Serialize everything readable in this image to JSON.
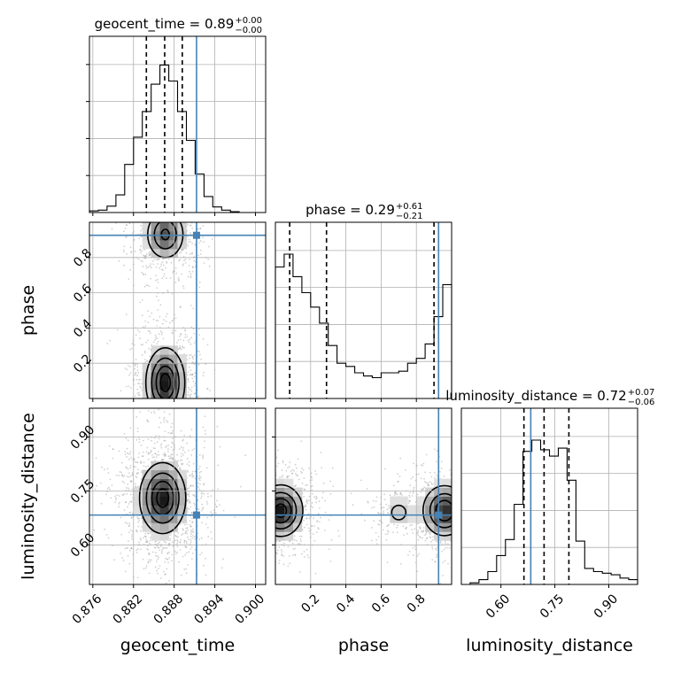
{
  "chart_data": {
    "type": "corner",
    "parameters": [
      "geocent_time",
      "phase",
      "luminosity_distance"
    ],
    "truths": {
      "geocent_time": 0.8913,
      "phase": 0.926,
      "luminosity_distance": 0.683
    },
    "titles": [
      {
        "param": "geocent_time",
        "text": "geocent_time = 0.89",
        "upper": "+0.00",
        "lower": "−0.00"
      },
      {
        "param": "phase",
        "text": "phase = 0.29",
        "upper": "+0.61",
        "lower": "−0.21"
      },
      {
        "param": "luminosity_distance",
        "text": "luminosity_distance = 0.72",
        "upper": "+0.07",
        "lower": "−0.06"
      }
    ],
    "axis_labels": {
      "xlabels": [
        "geocent_time",
        "phase",
        "luminosity_distance"
      ],
      "ylabels": [
        "phase",
        "luminosity_distance"
      ]
    },
    "ranges": {
      "geocent_time": [
        0.8755,
        0.9015
      ],
      "phase": [
        0.0,
        1.0
      ],
      "luminosity_distance": [
        0.49,
        0.98
      ]
    },
    "ticks": {
      "geocent_time": [
        "0.876",
        "0.882",
        "0.888",
        "0.894",
        "0.900"
      ],
      "phase": [
        "0.2",
        "0.4",
        "0.6",
        "0.8"
      ],
      "luminosity_distance": [
        "0.60",
        "0.75",
        "0.90"
      ]
    },
    "histograms": {
      "geocent_time": {
        "bins": [
          0.8755,
          0.8768,
          0.8781,
          0.8794,
          0.8807,
          0.882,
          0.8833,
          0.8846,
          0.8859,
          0.8872,
          0.8885,
          0.8898,
          0.8911,
          0.8924,
          0.8937,
          0.895,
          0.8963,
          0.8976,
          0.8989,
          0.9002,
          0.9015
        ],
        "counts": [
          0.01,
          0.015,
          0.04,
          0.11,
          0.3,
          0.47,
          0.63,
          0.8,
          0.92,
          0.82,
          0.63,
          0.45,
          0.24,
          0.1,
          0.035,
          0.015,
          0.005,
          0.0,
          0.0,
          0.0
        ]
      },
      "phase": {
        "bins": [
          0.0,
          0.05,
          0.1,
          0.15,
          0.2,
          0.25,
          0.3,
          0.35,
          0.4,
          0.45,
          0.5,
          0.55,
          0.6,
          0.65,
          0.7,
          0.75,
          0.8,
          0.85,
          0.9,
          0.95,
          1.0
        ],
        "counts": [
          0.82,
          0.9,
          0.76,
          0.66,
          0.57,
          0.47,
          0.33,
          0.22,
          0.2,
          0.16,
          0.14,
          0.13,
          0.16,
          0.16,
          0.17,
          0.22,
          0.25,
          0.34,
          0.51,
          0.71
        ]
      },
      "luminosity_distance": {
        "bins": [
          0.49,
          0.5145,
          0.539,
          0.5635,
          0.588,
          0.6125,
          0.637,
          0.6615,
          0.686,
          0.7105,
          0.735,
          0.7595,
          0.784,
          0.8085,
          0.833,
          0.8575,
          0.882,
          0.9065,
          0.931,
          0.9555,
          0.98
        ],
        "counts": [
          0.0,
          0.01,
          0.03,
          0.08,
          0.18,
          0.28,
          0.5,
          0.83,
          0.9,
          0.84,
          0.8,
          0.85,
          0.65,
          0.27,
          0.1,
          0.08,
          0.07,
          0.06,
          0.04,
          0.03
        ]
      }
    },
    "quantile_lines": {
      "geocent_time": [
        0.8839,
        0.8866,
        0.8892
      ],
      "phase": [
        0.081,
        0.29,
        0.9
      ],
      "luminosity_distance": [
        0.664,
        0.72,
        0.789
      ]
    },
    "pairs": [
      {
        "x": "geocent_time",
        "y": "phase",
        "modes": [
          {
            "cx": 0.8867,
            "cy": 0.09,
            "sx": 0.0016,
            "sy": 0.11,
            "w": 1.0
          },
          {
            "cx": 0.8867,
            "cy": 0.93,
            "sx": 0.0016,
            "sy": 0.08,
            "w": 0.75
          }
        ]
      },
      {
        "x": "geocent_time",
        "y": "luminosity_distance",
        "modes": [
          {
            "cx": 0.8863,
            "cy": 0.73,
            "sx": 0.0019,
            "sy": 0.055,
            "w": 1.0
          }
        ]
      },
      {
        "x": "phase",
        "y": "luminosity_distance",
        "modes": [
          {
            "cx": 0.03,
            "cy": 0.695,
            "sx": 0.07,
            "sy": 0.04,
            "w": 1.0
          },
          {
            "cx": 0.96,
            "cy": 0.695,
            "sx": 0.07,
            "sy": 0.04,
            "w": 0.9
          },
          {
            "cx": 0.7,
            "cy": 0.69,
            "sx": 0.06,
            "sy": 0.03,
            "w": 0.25
          }
        ]
      }
    ],
    "colors": {
      "truth": "#4682b4",
      "hist": "#000000",
      "grid": "#b0b0b0",
      "density": "#000000"
    },
    "grid": true
  }
}
